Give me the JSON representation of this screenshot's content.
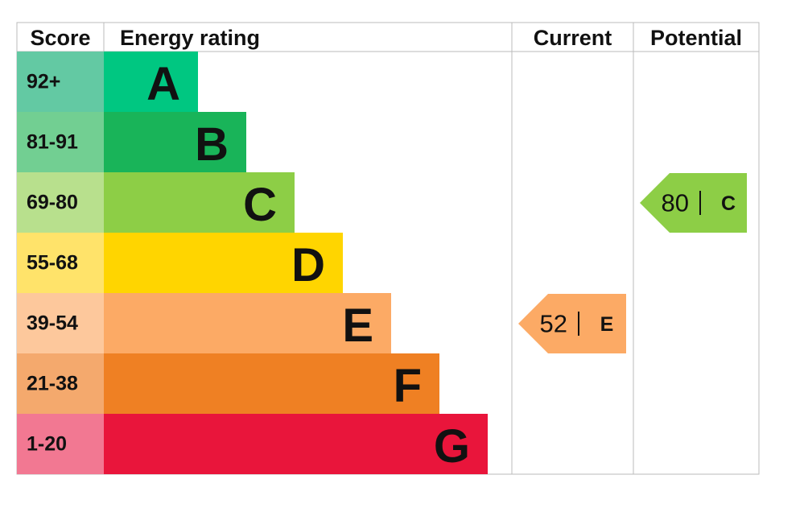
{
  "chart_data": {
    "type": "epc",
    "headers": [
      "Score",
      "Energy rating",
      "Current",
      "Potential"
    ],
    "bands": [
      {
        "score": "92+",
        "letter": "A",
        "color": "#00c781",
        "score_color": "#63c9a3"
      },
      {
        "score": "81-91",
        "letter": "B",
        "color": "#19b459",
        "score_color": "#72cf92"
      },
      {
        "score": "69-80",
        "letter": "C",
        "color": "#8dce46",
        "score_color": "#b8e08d"
      },
      {
        "score": "55-68",
        "letter": "D",
        "color": "#ffd500",
        "score_color": "#ffe36a"
      },
      {
        "score": "39-54",
        "letter": "E",
        "color": "#fcaa65",
        "score_color": "#fdc89c"
      },
      {
        "score": "21-38",
        "letter": "F",
        "color": "#ef8023",
        "score_color": "#f4a96d"
      },
      {
        "score": "1-20",
        "letter": "G",
        "color": "#e9153b",
        "score_color": "#f27892"
      }
    ],
    "current": {
      "value": 52,
      "letter": "E",
      "color": "#fcaa65"
    },
    "potential": {
      "value": 80,
      "letter": "C",
      "color": "#8dce46"
    }
  }
}
